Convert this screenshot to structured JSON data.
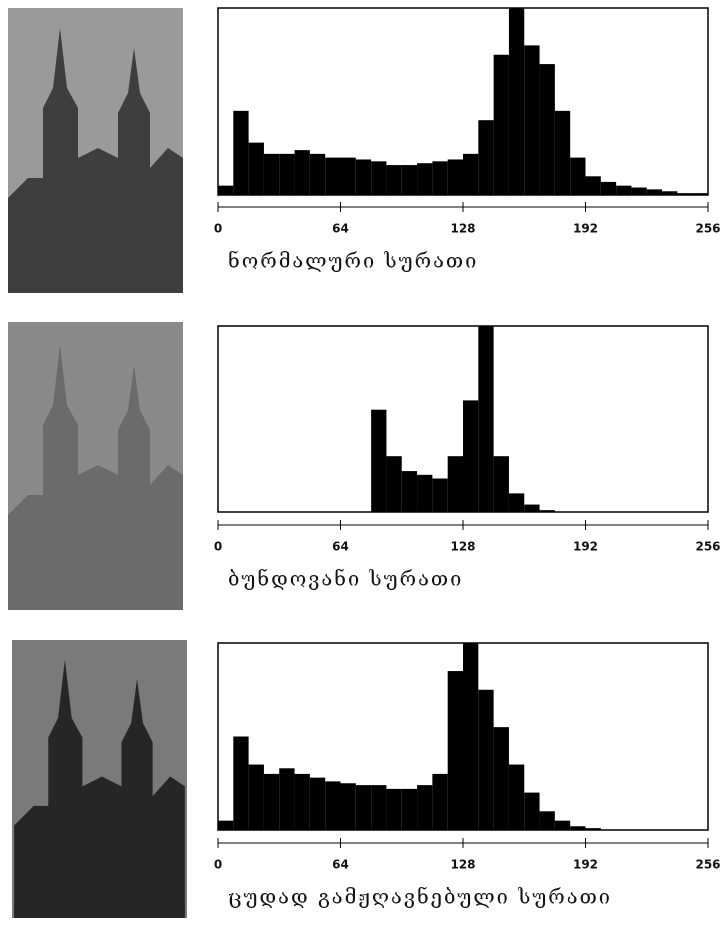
{
  "chart_data": [
    {
      "type": "histogram",
      "xlabel": "ნორმალური სურათი",
      "color": "#000000",
      "bins": [
        0,
        8,
        16,
        24,
        32,
        40,
        48,
        56,
        64,
        72,
        80,
        88,
        96,
        104,
        112,
        120,
        128,
        136,
        144,
        152,
        160,
        168,
        176,
        184,
        192,
        200,
        208,
        216,
        224,
        232,
        240,
        248,
        256
      ],
      "values": [
        5,
        45,
        28,
        22,
        22,
        24,
        22,
        20,
        20,
        19,
        18,
        16,
        16,
        17,
        18,
        19,
        22,
        40,
        75,
        100,
        80,
        70,
        45,
        20,
        10,
        7,
        5,
        4,
        3,
        2,
        1,
        1
      ],
      "xlim": [
        0,
        256
      ],
      "xticks": [
        0,
        64,
        128,
        192,
        256
      ],
      "ylim": [
        0,
        100
      ]
    },
    {
      "type": "histogram",
      "xlabel": "ბუნდოვანი სურათი",
      "color": "#000000",
      "bins": [
        0,
        8,
        16,
        24,
        32,
        40,
        48,
        56,
        64,
        72,
        80,
        88,
        96,
        104,
        112,
        120,
        128,
        136,
        144,
        152,
        160,
        168,
        176,
        184,
        192,
        200,
        208,
        216,
        224,
        232,
        240,
        248,
        256
      ],
      "values": [
        0,
        0,
        0,
        0,
        0,
        0,
        0,
        0,
        0,
        0,
        55,
        30,
        22,
        20,
        18,
        30,
        60,
        100,
        30,
        10,
        4,
        1,
        0,
        0,
        0,
        0,
        0,
        0,
        0,
        0,
        0,
        0
      ],
      "xlim": [
        0,
        256
      ],
      "xticks": [
        0,
        64,
        128,
        192,
        256
      ],
      "ylim": [
        0,
        100
      ]
    },
    {
      "type": "histogram",
      "xlabel": "ცუდად გამჟღავნებული სურათი",
      "color": "#000000",
      "bins": [
        0,
        8,
        16,
        24,
        32,
        40,
        48,
        56,
        64,
        72,
        80,
        88,
        96,
        104,
        112,
        120,
        128,
        136,
        144,
        152,
        160,
        168,
        176,
        184,
        192,
        200,
        208,
        216,
        224,
        232,
        240,
        248,
        256
      ],
      "values": [
        5,
        50,
        35,
        30,
        33,
        30,
        28,
        26,
        25,
        24,
        24,
        22,
        22,
        24,
        30,
        85,
        100,
        75,
        55,
        35,
        20,
        10,
        5,
        2,
        1,
        0,
        0,
        0,
        0,
        0,
        0,
        0
      ],
      "xlim": [
        0,
        256
      ],
      "xticks": [
        0,
        64,
        128,
        192,
        256
      ],
      "ylim": [
        0,
        100
      ]
    }
  ]
}
